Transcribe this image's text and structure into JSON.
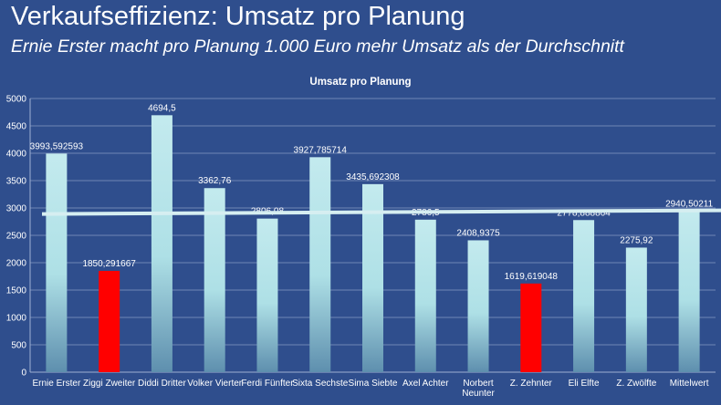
{
  "slide": {
    "title": "Verkaufseffizienz: Umsatz pro Planung",
    "subtitle": "Ernie Erster macht pro Planung 1.000 Euro mehr Umsatz als der Durchschnitt"
  },
  "colors": {
    "background": "#2f4e8d",
    "bar_normal": "#aee0e6",
    "bar_highlight": "#ff0000",
    "average_line": "#d6eef1",
    "grid": "#6f86b5"
  },
  "chart_data": {
    "type": "bar",
    "title": "Umsatz pro Planung",
    "xlabel": "",
    "ylabel": "",
    "ylim": [
      0,
      5000
    ],
    "yticks": [
      0,
      500,
      1000,
      1500,
      2000,
      2500,
      3000,
      3500,
      4000,
      4500,
      5000
    ],
    "grid": true,
    "legend": "none",
    "categories": [
      "Ernie Erster",
      "Ziggi Zweiter",
      "Diddi Dritter",
      "Volker Vierter",
      "Ferdi Fünfter",
      "Sixta Sechste",
      "Sima Siebte",
      "Axel Achter",
      "Norbert Neunter",
      "Z. Zehnter",
      "Eli Elfte",
      "Z. Zwölfte",
      "Mittelwert"
    ],
    "values": [
      3993.592593,
      1850.291667,
      4694.5,
      3362.76,
      2806.08,
      3927.785714,
      3435.692308,
      2786.5,
      2408.9375,
      1619.619048,
      2778.888864,
      2275.92,
      2940.50211
    ],
    "data_labels": [
      "3993,592593",
      "1850,291667",
      "4694,5",
      "3362,76",
      "2806,08",
      "3927,785714",
      "3435,692308",
      "2786,5",
      "2408,9375",
      "1619,619048",
      "2778,888864",
      "2275,92",
      "2940,50211"
    ],
    "highlighted": [
      false,
      true,
      false,
      false,
      false,
      false,
      false,
      false,
      false,
      true,
      false,
      false,
      false
    ],
    "average": 2940.50211
  }
}
